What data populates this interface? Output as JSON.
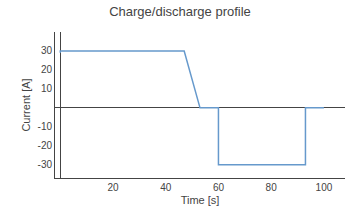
{
  "chart_data": {
    "type": "line",
    "title": "Charge/discharge profile",
    "xlabel": "Time [s]",
    "ylabel": "Current [A]",
    "x": [
      0,
      0,
      47,
      53,
      57,
      57,
      60,
      60,
      93,
      93,
      100
    ],
    "values": [
      29,
      30,
      30,
      0,
      0,
      0,
      0,
      -30,
      -30,
      0,
      0
    ],
    "color": "#6699cc",
    "xlim": [
      -2,
      108
    ],
    "ylim": [
      -37,
      40
    ],
    "xticks": [
      20,
      40,
      60,
      80,
      100
    ],
    "yticks": [
      -30,
      -20,
      -10,
      10,
      20,
      30
    ],
    "grid": false
  }
}
